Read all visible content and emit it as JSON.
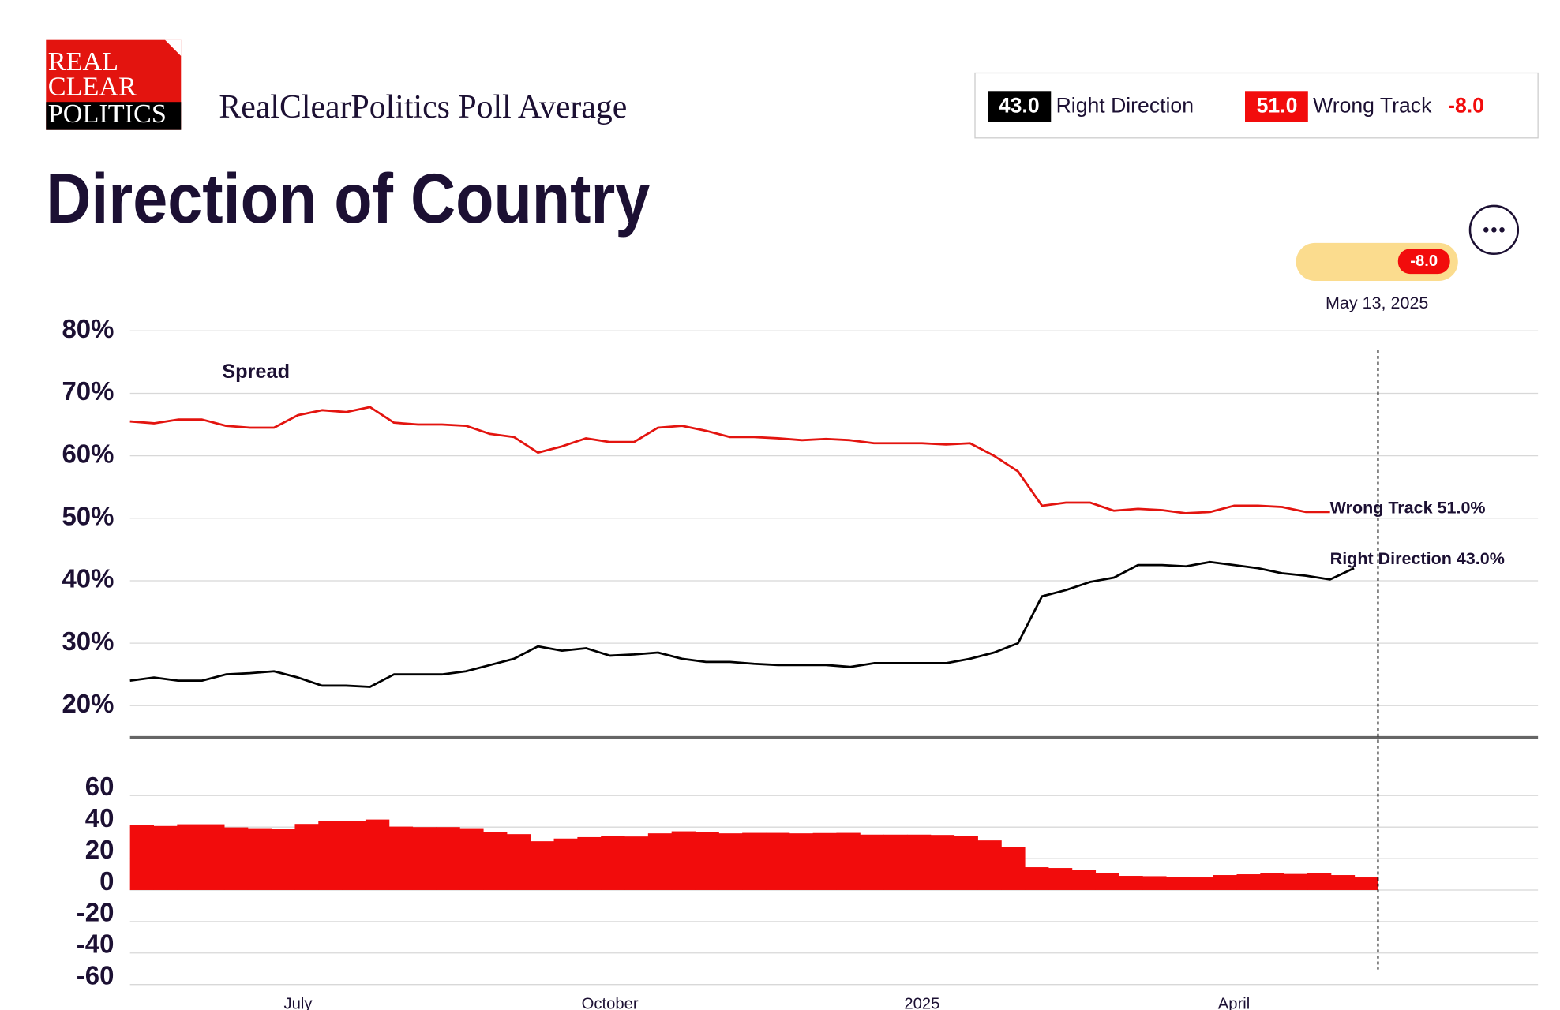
{
  "header": {
    "logo": [
      "REAL",
      "CLEAR",
      "POLITICS"
    ],
    "subtitle": "RealClearPolitics Poll Average",
    "title": "Direction of Country",
    "legend": {
      "right_value": "43.0",
      "right_label": "Right Direction",
      "wrong_value": "51.0",
      "wrong_label": "Wrong Track",
      "spread": "-8.0"
    },
    "tooltip": {
      "spread": "-8.0",
      "date": "May 13, 2025"
    }
  },
  "chart_data": [
    {
      "type": "line",
      "annotation": "Spread",
      "ylim": [
        15,
        80
      ],
      "yticks": [
        {
          "value": 80,
          "label": "80%"
        },
        {
          "value": 70,
          "label": "70%"
        },
        {
          "value": 60,
          "label": "60%"
        },
        {
          "value": 50,
          "label": "50%"
        },
        {
          "value": 40,
          "label": "40%"
        },
        {
          "value": 30,
          "label": "30%"
        },
        {
          "value": 20,
          "label": "20%"
        }
      ],
      "grid": true,
      "series": [
        {
          "name": "Wrong Track",
          "end_label": "Wrong Track 51.0%",
          "color": "#e3140f",
          "values": [
            65.5,
            65.2,
            65.8,
            65.8,
            64.8,
            64.5,
            64.5,
            66.5,
            67.3,
            67.0,
            67.8,
            65.3,
            65.0,
            65.0,
            64.8,
            63.5,
            63.0,
            60.5,
            61.5,
            62.8,
            62.2,
            62.2,
            64.5,
            64.8,
            64.0,
            63.0,
            63.0,
            62.8,
            62.5,
            62.7,
            62.5,
            62.0,
            62.0,
            62.0,
            61.8,
            62.0,
            60.0,
            57.5,
            52.0,
            52.5,
            52.5,
            51.2,
            51.5,
            51.3,
            50.8,
            51.0,
            52.0,
            52.0,
            51.8,
            51.0,
            51.0,
            null,
            null
          ]
        },
        {
          "name": "Right Direction",
          "end_label": "Right Direction 43.0%",
          "color": "#000000",
          "values": [
            24.0,
            24.5,
            24.0,
            24.0,
            25.0,
            25.2,
            25.5,
            24.5,
            23.2,
            23.2,
            23.0,
            25.0,
            25.0,
            25.0,
            25.5,
            26.5,
            27.5,
            29.5,
            28.8,
            29.2,
            28.0,
            28.2,
            28.5,
            27.5,
            27.0,
            27.0,
            26.7,
            26.5,
            26.5,
            26.5,
            26.2,
            26.8,
            26.8,
            26.8,
            26.8,
            27.5,
            28.5,
            30.0,
            37.5,
            38.5,
            39.8,
            40.5,
            42.5,
            42.5,
            42.3,
            43.0,
            42.5,
            42.0,
            41.2,
            40.8,
            40.2,
            42.0,
            null
          ]
        }
      ]
    },
    {
      "type": "bar",
      "color": "#f20c0c",
      "categories": [
        null,
        null,
        null,
        null,
        null,
        null,
        null,
        "July",
        null,
        null,
        null,
        null,
        null,
        null,
        null,
        null,
        null,
        null,
        null,
        null,
        "October",
        null,
        null,
        null,
        null,
        null,
        null,
        null,
        null,
        null,
        null,
        null,
        null,
        "2025",
        null,
        null,
        null,
        null,
        null,
        null,
        null,
        null,
        null,
        null,
        null,
        null,
        "April",
        null,
        null,
        null,
        null,
        null,
        null
      ],
      "values": [
        41.5,
        40.7,
        41.8,
        41.8,
        39.8,
        39.3,
        39.0,
        42.0,
        44.1,
        43.8,
        44.8,
        40.3,
        40.0,
        40.0,
        39.3,
        37.0,
        35.5,
        31.0,
        32.7,
        33.6,
        34.2,
        34.0,
        36.0,
        37.3,
        37.0,
        36.0,
        36.3,
        36.3,
        36.0,
        36.2,
        36.3,
        35.2,
        35.2,
        35.2,
        35.0,
        34.5,
        31.5,
        27.5,
        14.5,
        14.0,
        12.7,
        10.7,
        9.0,
        8.8,
        8.5,
        8.0,
        9.5,
        10.0,
        10.6,
        10.2,
        10.8,
        9.5,
        8.0
      ],
      "ylim": [
        -60,
        60
      ],
      "yticks": [
        60,
        40,
        20,
        0,
        -20,
        -40,
        -60
      ],
      "grid": true
    }
  ]
}
